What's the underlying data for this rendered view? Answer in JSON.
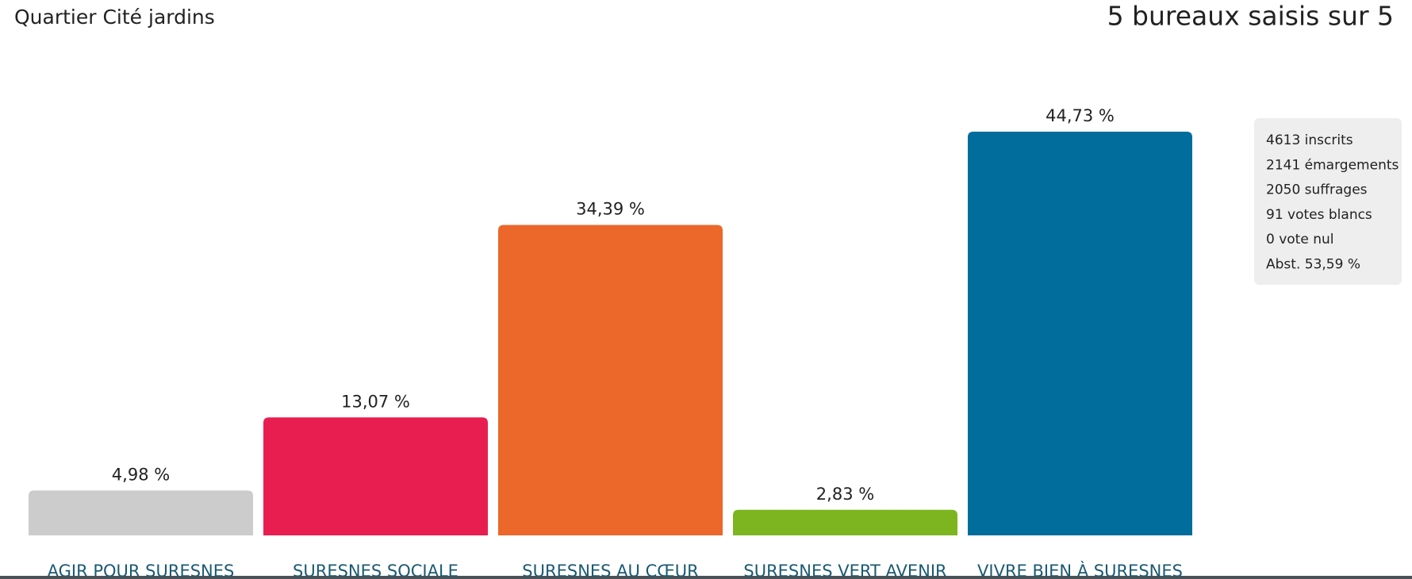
{
  "chart_data": {
    "type": "bar",
    "title": "Quartier Cité jardins",
    "subtitle": "5 bureaux saisis sur 5",
    "categories": [
      "AGIR POUR SURESNES",
      "SURESNES SOCIALE",
      "SURESNES AU CŒUR",
      "SURESNES VERT AVENIR",
      "VIVRE BIEN À SURESNES"
    ],
    "values": [
      4.98,
      13.07,
      34.39,
      2.83,
      44.73
    ],
    "value_labels": [
      "4,98 %",
      "13,07 %",
      "34,39 %",
      "2,83 %",
      "44,73 %"
    ],
    "colors": [
      "#cccccc",
      "#e91e50",
      "#ec672a",
      "#7cb51f",
      "#006d9c"
    ],
    "annotations": [
      "4613 inscrits",
      "2141 émargements",
      "2050 suffrages",
      "91 votes blancs",
      "0 vote nul",
      "Abst. 53,59 %"
    ]
  }
}
